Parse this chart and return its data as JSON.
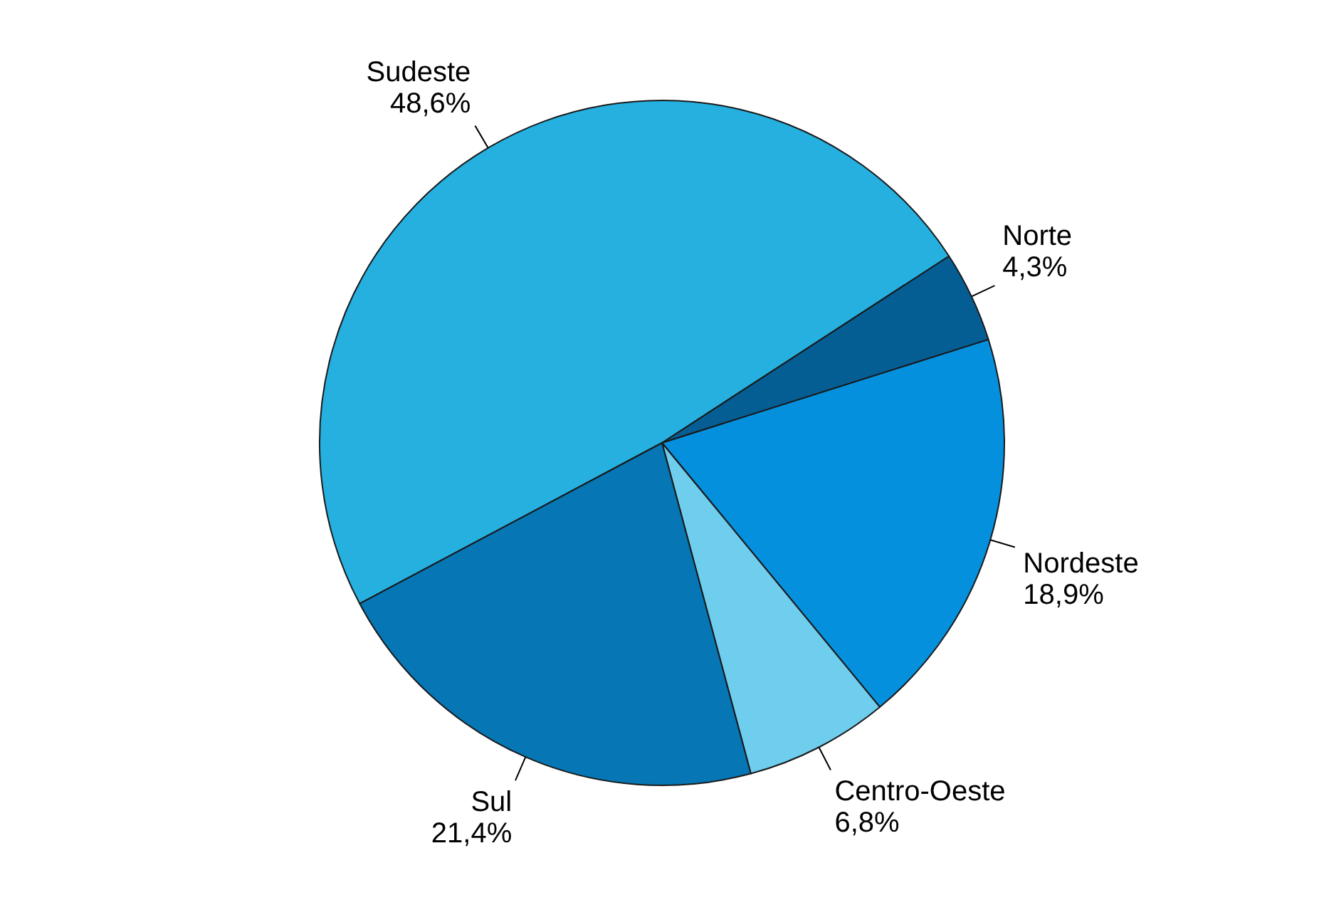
{
  "chart_data": {
    "type": "pie",
    "categories": [
      "Sudeste",
      "Norte",
      "Nordeste",
      "Centro-Oeste",
      "Sul"
    ],
    "values": [
      48.6,
      4.3,
      18.9,
      6.8,
      21.4
    ],
    "colors": [
      "#25b0e0",
      "#045e94",
      "#0590de",
      "#6fcdee",
      "#0676b4"
    ],
    "value_labels": [
      "48,6%",
      "4,3%",
      "18,9%",
      "6,8%",
      "21,4%"
    ]
  }
}
